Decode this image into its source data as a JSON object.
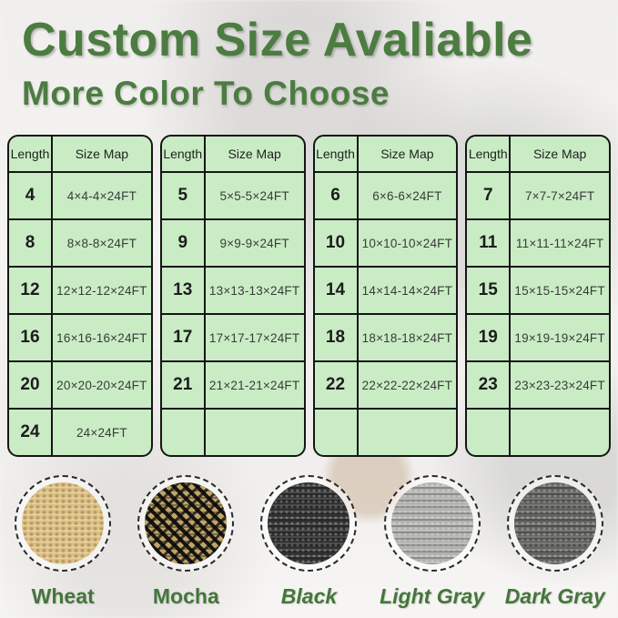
{
  "page": {
    "title": "Custom Size Avaliable",
    "subtitle": "More Color To Choose"
  },
  "colors": {
    "heading_green": "#4c7c41",
    "label_green": "#45763b",
    "table_background": "#c9ecc4",
    "table_border": "#151515"
  },
  "tables": [
    {
      "headers": [
        "Length",
        "Size Map"
      ],
      "rows": [
        [
          "4",
          "4×4-4×24FT"
        ],
        [
          "8",
          "8×8-8×24FT"
        ],
        [
          "12",
          "12×12-12×24FT"
        ],
        [
          "16",
          "16×16-16×24FT"
        ],
        [
          "20",
          "20×20-20×24FT"
        ],
        [
          "24",
          "24×24FT"
        ]
      ]
    },
    {
      "headers": [
        "Length",
        "Size Map"
      ],
      "rows": [
        [
          "5",
          "5×5-5×24FT"
        ],
        [
          "9",
          "9×9-9×24FT"
        ],
        [
          "13",
          "13×13-13×24FT"
        ],
        [
          "17",
          "17×17-17×24FT"
        ],
        [
          "21",
          "21×21-21×24FT"
        ],
        [
          "",
          ""
        ]
      ]
    },
    {
      "headers": [
        "Length",
        "Size Map"
      ],
      "rows": [
        [
          "6",
          "6×6-6×24FT"
        ],
        [
          "10",
          "10×10-10×24FT"
        ],
        [
          "14",
          "14×14-14×24FT"
        ],
        [
          "18",
          "18×18-18×24FT"
        ],
        [
          "22",
          "22×22-22×24FT"
        ],
        [
          "",
          ""
        ]
      ]
    },
    {
      "headers": [
        "Length",
        "Size Map"
      ],
      "rows": [
        [
          "7",
          "7×7-7×24FT"
        ],
        [
          "11",
          "11×11-11×24FT"
        ],
        [
          "15",
          "15×15-15×24FT"
        ],
        [
          "19",
          "19×19-19×24FT"
        ],
        [
          "23",
          "23×23-23×24FT"
        ],
        [
          "",
          ""
        ]
      ]
    }
  ],
  "swatches": [
    {
      "label": "Wheat",
      "italic": false,
      "base_color": "#ddc084",
      "pattern": "dots"
    },
    {
      "label": "Mocha",
      "italic": false,
      "base_color": "#c0a468",
      "pattern": "weave"
    },
    {
      "label": "Black",
      "italic": true,
      "base_color": "#303030",
      "pattern": "knit"
    },
    {
      "label": "Light Gray",
      "italic": true,
      "base_color": "#b2b2b0",
      "pattern": "knit"
    },
    {
      "label": "Dark Gray",
      "italic": true,
      "base_color": "#626260",
      "pattern": "knit"
    }
  ]
}
